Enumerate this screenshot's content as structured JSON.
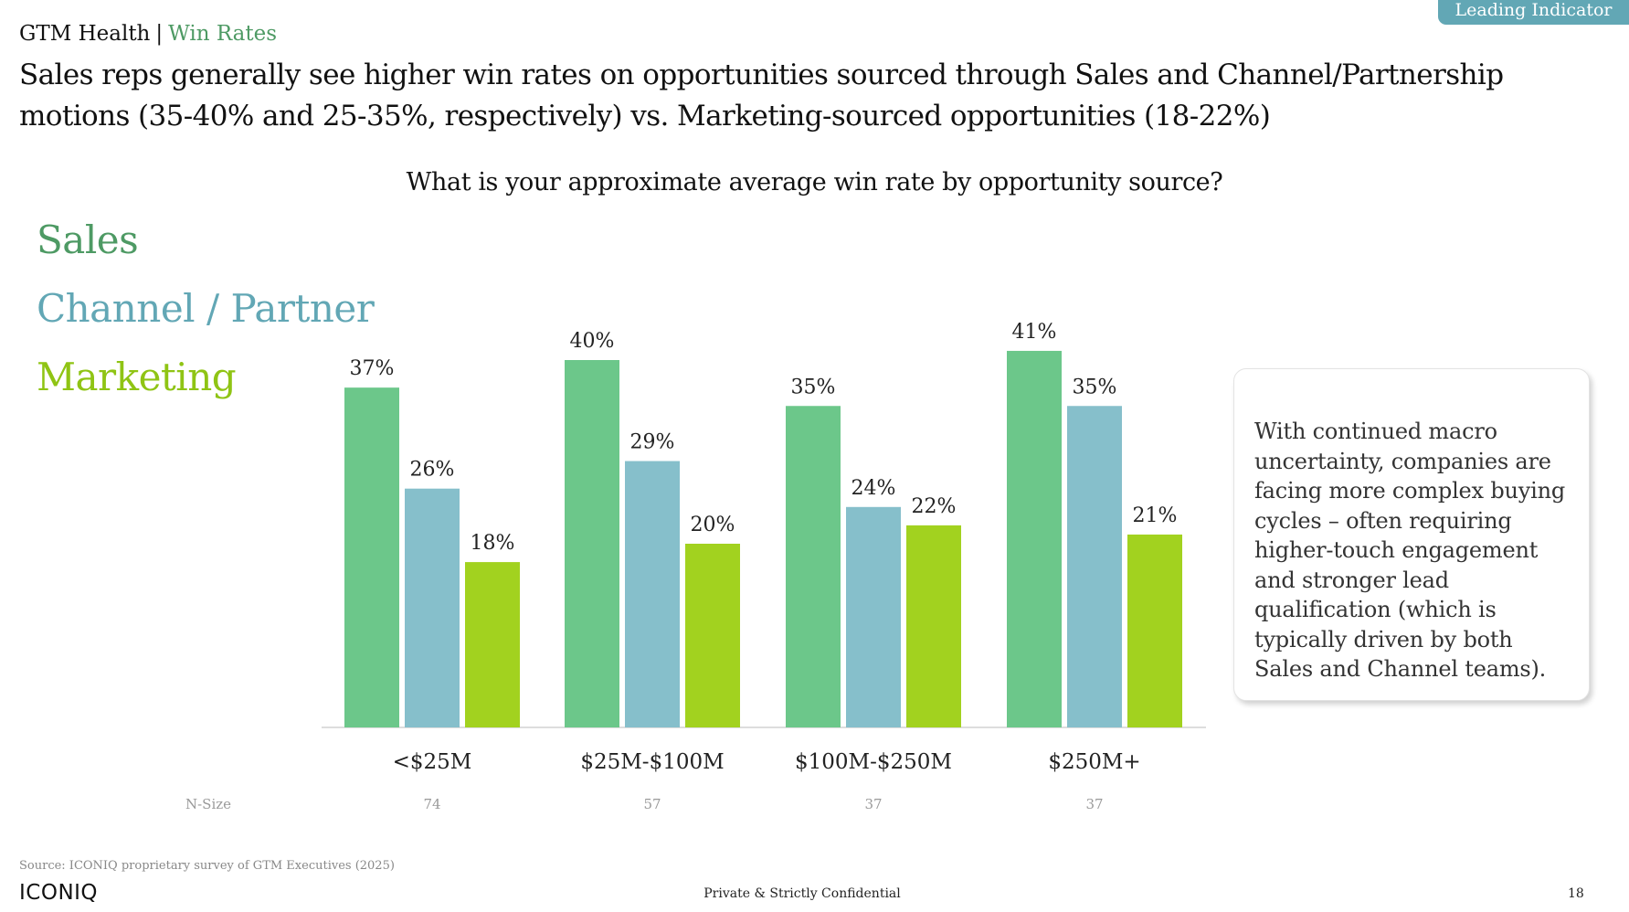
{
  "header": {
    "section": "GTM Health",
    "separator": "|",
    "subsection": "Win Rates",
    "badge": "Leading Indicator",
    "headline": "Sales reps generally see higher win rates on opportunities sourced through Sales and Channel/Partnership motions (35-40% and 25-35%, respectively) vs. Marketing-sourced opportunities (18-22%)"
  },
  "colors": {
    "sales": "#6cc78a",
    "channel": "#86bfcb",
    "marketing": "#a2d21f",
    "accent_green": "#4e9a64",
    "badge_bg": "#62a7b5"
  },
  "chart_data": {
    "type": "bar",
    "title": "What is your approximate average win rate by opportunity source?",
    "categories": [
      "<$25M",
      "$25M-$100M",
      "$100M-$250M",
      "$250M+"
    ],
    "series": [
      {
        "name": "Sales",
        "values": [
          37,
          40,
          35,
          41
        ],
        "labels": [
          "37%",
          "40%",
          "35%",
          "41%"
        ]
      },
      {
        "name": "Channel / Partner",
        "values": [
          26,
          29,
          24,
          35
        ],
        "labels": [
          "26%",
          "29%",
          "24%",
          "35%"
        ]
      },
      {
        "name": "Marketing",
        "values": [
          18,
          20,
          22,
          21
        ],
        "labels": [
          "18%",
          "20%",
          "22%",
          "21%"
        ]
      }
    ],
    "ylim": [
      0,
      45
    ],
    "xlabel": "",
    "ylabel": "",
    "grid": false,
    "legend": "left",
    "n_size_label": "N-Size",
    "n_size": [
      "74",
      "57",
      "37",
      "37"
    ]
  },
  "callout": {
    "text": "With continued macro uncertainty, companies are facing more complex buying cycles – often requiring higher-touch engagement and stronger lead qualification (which is typically driven by both Sales and Channel teams)."
  },
  "footer": {
    "source": "Source: ICONIQ proprietary survey of GTM Executives (2025)",
    "logo": "ICONIQ",
    "confidential": "Private & Strictly Confidential",
    "page_number": "18"
  }
}
